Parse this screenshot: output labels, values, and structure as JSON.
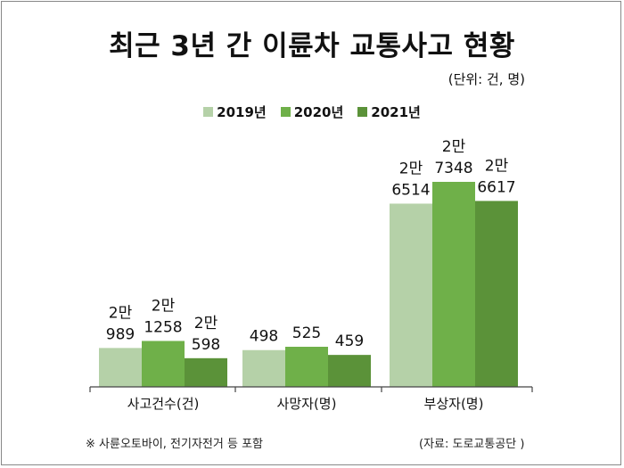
{
  "title": "최근 3년 간 이륜차 교통사고 현황",
  "unit": "(단위: 건, 명)",
  "note": "※ 사륜오토바이, 전기자전거 등 포함",
  "source": "(자료: 도로교통공단 )",
  "colors": {
    "2019년": "#b5d1a8",
    "2020년": "#6fb049",
    "2021년": "#5b9239",
    "axis": "#444444"
  },
  "chart_data": {
    "type": "bar",
    "title": "최근 3년 간 이륜차 교통사고 현황",
    "xlabel": "",
    "ylabel": "",
    "legend_position": "top",
    "grid": false,
    "categories": [
      "사고건수(건)",
      "사망자(명)",
      "부상자(명)"
    ],
    "series": [
      {
        "name": "2019년",
        "values": [
          20989,
          498,
          26514
        ],
        "labels": [
          [
            "2만",
            "989"
          ],
          [
            "498"
          ],
          [
            "2만",
            "6514"
          ]
        ]
      },
      {
        "name": "2020년",
        "values": [
          21258,
          525,
          27348
        ],
        "labels": [
          [
            "2만",
            "1258"
          ],
          [
            "525"
          ],
          [
            "2만",
            "7348"
          ]
        ]
      },
      {
        "name": "2021년",
        "values": [
          20598,
          459,
          26617
        ],
        "labels": [
          [
            "2만",
            "598"
          ],
          [
            "459"
          ],
          [
            "2만",
            "6617"
          ]
        ]
      }
    ]
  }
}
